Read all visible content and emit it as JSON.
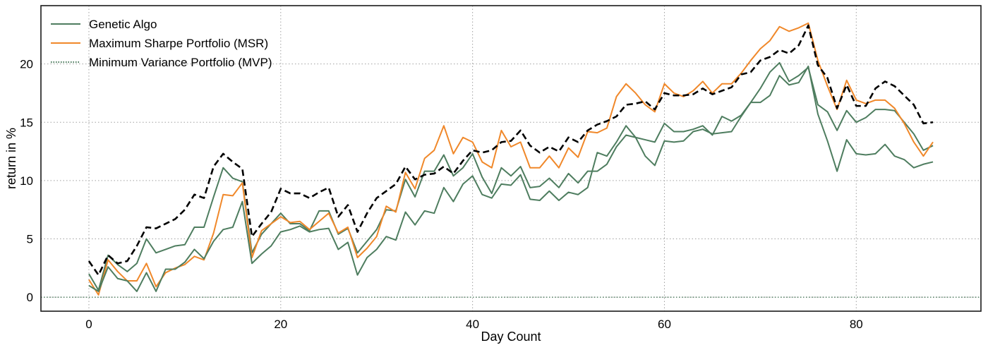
{
  "chart_data": {
    "type": "line",
    "title": "",
    "xlabel": "Day Count",
    "ylabel": "return in %",
    "xlim": [
      -5,
      93
    ],
    "ylim": [
      -1.2,
      25
    ],
    "xticks": [
      0,
      20,
      40,
      60,
      80
    ],
    "yticks": [
      0,
      5,
      10,
      15,
      20
    ],
    "grid": true,
    "legend_position": "top-left",
    "x": [
      0,
      1,
      2,
      3,
      4,
      5,
      6,
      7,
      8,
      9,
      10,
      11,
      12,
      13,
      14,
      15,
      16,
      17,
      18,
      19,
      20,
      21,
      22,
      23,
      24,
      25,
      26,
      27,
      28,
      29,
      30,
      31,
      32,
      33,
      34,
      35,
      36,
      37,
      38,
      39,
      40,
      41,
      42,
      43,
      44,
      45,
      46,
      47,
      48,
      49,
      50,
      51,
      52,
      53,
      54,
      55,
      56,
      57,
      58,
      59,
      60,
      61,
      62,
      63,
      64,
      65,
      66,
      67,
      68,
      69,
      70,
      71,
      72,
      73,
      74,
      75,
      76,
      77,
      78,
      79,
      80,
      81,
      82,
      83,
      84,
      85,
      86,
      87,
      88
    ],
    "series": [
      {
        "name": "Genetic Algo",
        "color": "#4e7d5f",
        "style": "solid",
        "values": [
          2.0,
          0.6,
          3.6,
          2.8,
          2.2,
          2.9,
          5.0,
          3.8,
          4.1,
          4.4,
          4.5,
          6.0,
          6.0,
          8.6,
          11.1,
          10.2,
          9.9,
          3.8,
          5.4,
          6.3,
          7.2,
          6.3,
          6.3,
          5.7,
          7.4,
          7.4,
          5.4,
          5.9,
          3.8,
          4.8,
          5.8,
          7.5,
          7.4,
          10.1,
          8.6,
          10.8,
          10.8,
          12.2,
          10.4,
          11.1,
          12.3,
          10.3,
          8.9,
          11.1,
          10.4,
          11.2,
          9.4,
          9.5,
          10.2,
          9.4,
          10.6,
          9.8,
          10.8,
          10.8,
          11.4,
          12.9,
          13.9,
          13.7,
          13.5,
          13.3,
          14.9,
          14.2,
          14.2,
          14.4,
          14.7,
          13.9,
          15.5,
          15.1,
          15.6,
          16.7,
          17.9,
          19.3,
          20.1,
          18.5,
          19.0,
          19.7,
          16.5,
          15.9,
          14.3,
          16.0,
          15.0,
          15.4,
          16.1,
          16.1,
          16.0,
          15.0,
          14.0,
          12.6,
          13.0
        ]
      },
      {
        "name": "Maximum Sharpe Portfolio (MSR)",
        "color": "#f0882a",
        "style": "solid",
        "values": [
          1.5,
          0.2,
          3.2,
          2.2,
          1.4,
          1.4,
          2.9,
          0.9,
          2.1,
          2.5,
          2.8,
          3.5,
          3.2,
          5.5,
          8.8,
          8.7,
          9.8,
          3.4,
          5.7,
          6.3,
          6.9,
          6.4,
          6.5,
          5.8,
          6.5,
          7.2,
          5.5,
          6.0,
          3.4,
          4.2,
          5.2,
          7.8,
          7.3,
          10.7,
          9.3,
          11.9,
          12.6,
          14.7,
          12.3,
          13.7,
          13.3,
          11.6,
          11.1,
          14.3,
          12.9,
          13.3,
          11.1,
          11.1,
          12.1,
          11.1,
          12.8,
          12.0,
          14.2,
          14.1,
          14.5,
          17.2,
          18.3,
          17.5,
          16.5,
          15.9,
          18.3,
          17.5,
          17.2,
          17.7,
          18.5,
          17.5,
          18.3,
          18.3,
          19.2,
          20.3,
          21.3,
          22.0,
          23.2,
          22.8,
          23.1,
          23.5,
          20.3,
          18.1,
          16.1,
          18.6,
          16.9,
          16.6,
          16.9,
          16.9,
          16.2,
          14.9,
          13.3,
          12.1,
          13.3
        ]
      },
      {
        "name": "Minimum Variance Portfolio (MVP)",
        "color": "#4e7d5f",
        "style": "solid",
        "values": [
          1.0,
          0.5,
          2.6,
          1.6,
          1.4,
          0.5,
          2.1,
          0.5,
          2.4,
          2.4,
          3.0,
          4.1,
          3.3,
          4.8,
          5.8,
          6.0,
          8.2,
          2.9,
          3.7,
          4.4,
          5.6,
          5.8,
          6.1,
          5.6,
          5.8,
          5.9,
          4.1,
          4.7,
          1.9,
          3.4,
          4.1,
          5.2,
          4.9,
          7.3,
          6.2,
          7.4,
          7.2,
          9.4,
          8.2,
          9.7,
          10.4,
          8.8,
          8.5,
          9.7,
          9.6,
          10.5,
          8.4,
          8.3,
          9.1,
          8.3,
          9.0,
          8.8,
          9.4,
          12.4,
          12.1,
          13.3,
          14.7,
          13.7,
          12.1,
          11.3,
          13.4,
          13.3,
          13.4,
          14.2,
          14.4,
          14.0,
          14.1,
          14.2,
          15.5,
          16.7,
          16.7,
          17.3,
          19.0,
          18.2,
          18.4,
          19.8,
          15.7,
          13.4,
          10.8,
          13.5,
          12.3,
          12.2,
          12.3,
          13.1,
          12.1,
          11.8,
          11.1,
          11.4,
          11.6
        ]
      },
      {
        "name": "",
        "color": "#000000",
        "style": "dashed",
        "values": [
          3.1,
          1.9,
          3.6,
          2.9,
          3.1,
          4.4,
          6.0,
          5.9,
          6.3,
          6.7,
          7.5,
          8.8,
          8.5,
          11.2,
          12.3,
          11.6,
          11.0,
          5.2,
          6.3,
          7.3,
          9.3,
          8.9,
          8.9,
          8.5,
          9.0,
          9.4,
          6.9,
          7.9,
          5.6,
          7.2,
          8.5,
          9.1,
          9.7,
          11.2,
          10.1,
          10.5,
          10.6,
          11.2,
          10.6,
          11.7,
          12.6,
          12.4,
          12.6,
          13.3,
          13.4,
          14.3,
          13.0,
          12.4,
          12.9,
          12.5,
          13.7,
          13.3,
          14.3,
          14.8,
          15.1,
          15.5,
          16.5,
          16.6,
          16.8,
          16.1,
          17.5,
          17.3,
          17.3,
          17.4,
          17.9,
          17.4,
          17.7,
          18.0,
          19.1,
          19.3,
          20.3,
          20.6,
          21.2,
          20.9,
          21.6,
          23.3,
          19.9,
          18.8,
          16.2,
          18.2,
          16.4,
          16.4,
          17.9,
          18.5,
          18.1,
          17.3,
          16.5,
          14.9,
          15.0
        ]
      }
    ],
    "reference_lines": [
      {
        "axis": "y",
        "value": 0,
        "color": "#4e7d5f",
        "style": "dotted"
      }
    ]
  }
}
